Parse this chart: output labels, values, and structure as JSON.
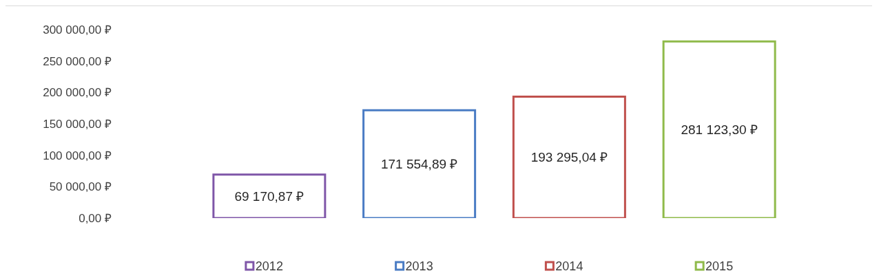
{
  "chart_data": {
    "type": "bar",
    "categories": [
      "2012",
      "2013",
      "2014",
      "2015"
    ],
    "series": [
      {
        "colors": [
          "#7f56a8",
          "#4a7cc4",
          "#c0504d",
          "#8fba4a"
        ],
        "values": [
          69170.87,
          171554.89,
          193295.04,
          281123.3
        ],
        "value_labels": [
          "69 170,87 ₽",
          "171 554,89 ₽",
          "193 295,04 ₽",
          "281 123,30 ₽"
        ]
      }
    ],
    "ylim": [
      0,
      300000
    ],
    "yticks": [
      {
        "value": 0,
        "label": "0,00 ₽"
      },
      {
        "value": 50000,
        "label": "50 000,00 ₽"
      },
      {
        "value": 100000,
        "label": "100 000,00 ₽"
      },
      {
        "value": 150000,
        "label": "150 000,00 ₽"
      },
      {
        "value": 200000,
        "label": "200 000,00 ₽"
      },
      {
        "value": 250000,
        "label": "250 000,00 ₽"
      },
      {
        "value": 300000,
        "label": "300 000,00 ₽"
      }
    ]
  }
}
